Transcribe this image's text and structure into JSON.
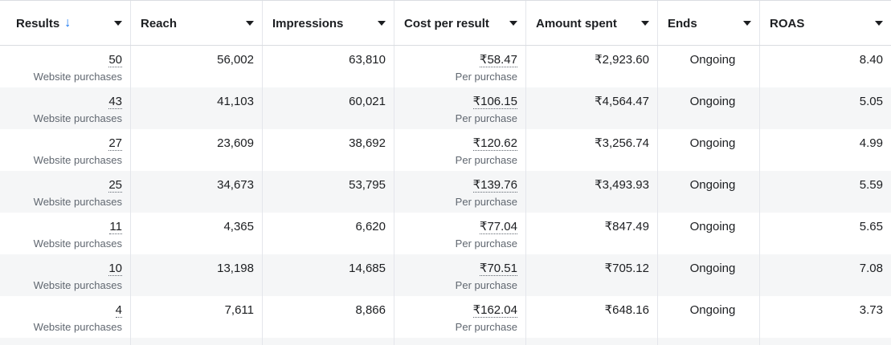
{
  "columns": [
    {
      "label": "Results",
      "sorted": true
    },
    {
      "label": "Reach"
    },
    {
      "label": "Impressions"
    },
    {
      "label": "Cost per result"
    },
    {
      "label": "Amount spent"
    },
    {
      "label": "Ends"
    },
    {
      "label": "ROAS"
    }
  ],
  "rows": [
    {
      "results": "50",
      "results_sub": "Website purchases",
      "reach": "56,002",
      "impressions": "63,810",
      "cost": "₹58.47",
      "cost_sub": "Per purchase",
      "spent": "₹2,923.60",
      "ends": "Ongoing",
      "roas": "8.40"
    },
    {
      "results": "43",
      "results_sub": "Website purchases",
      "reach": "41,103",
      "impressions": "60,021",
      "cost": "₹106.15",
      "cost_sub": "Per purchase",
      "spent": "₹4,564.47",
      "ends": "Ongoing",
      "roas": "5.05"
    },
    {
      "results": "27",
      "results_sub": "Website purchases",
      "reach": "23,609",
      "impressions": "38,692",
      "cost": "₹120.62",
      "cost_sub": "Per purchase",
      "spent": "₹3,256.74",
      "ends": "Ongoing",
      "roas": "4.99"
    },
    {
      "results": "25",
      "results_sub": "Website purchases",
      "reach": "34,673",
      "impressions": "53,795",
      "cost": "₹139.76",
      "cost_sub": "Per purchase",
      "spent": "₹3,493.93",
      "ends": "Ongoing",
      "roas": "5.59"
    },
    {
      "results": "11",
      "results_sub": "Website purchases",
      "reach": "4,365",
      "impressions": "6,620",
      "cost": "₹77.04",
      "cost_sub": "Per purchase",
      "spent": "₹847.49",
      "ends": "Ongoing",
      "roas": "5.65"
    },
    {
      "results": "10",
      "results_sub": "Website purchases",
      "reach": "13,198",
      "impressions": "14,685",
      "cost": "₹70.51",
      "cost_sub": "Per purchase",
      "spent": "₹705.12",
      "ends": "Ongoing",
      "roas": "7.08"
    },
    {
      "results": "4",
      "results_sub": "Website purchases",
      "reach": "7,611",
      "impressions": "8,866",
      "cost": "₹162.04",
      "cost_sub": "Per purchase",
      "spent": "₹648.16",
      "ends": "Ongoing",
      "roas": "3.73"
    }
  ],
  "colors": {
    "accent": "#1877f2",
    "stripe": "#f5f6f7",
    "border": "#dadde1"
  }
}
